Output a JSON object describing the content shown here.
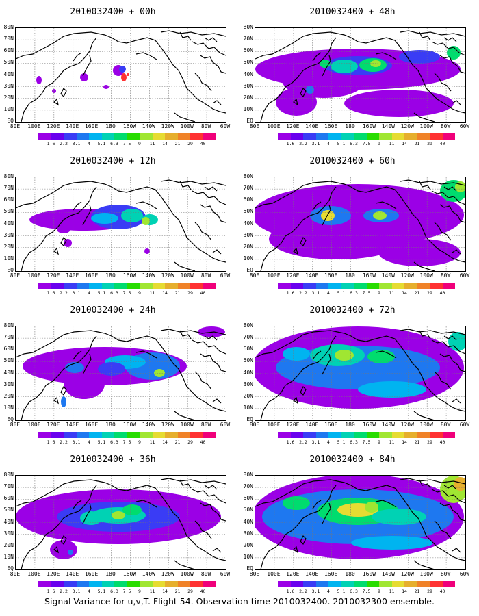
{
  "panels": [
    {
      "title": "2010032400 + 00h"
    },
    {
      "title": "2010032400 + 48h"
    },
    {
      "title": "2010032400 + 12h"
    },
    {
      "title": "2010032400 + 60h"
    },
    {
      "title": "2010032400 + 24h"
    },
    {
      "title": "2010032400 + 72h"
    },
    {
      "title": "2010032400 + 36h"
    },
    {
      "title": "2010032400 + 84h"
    }
  ],
  "lat_labels": [
    "80N",
    "70N",
    "60N",
    "50N",
    "40N",
    "30N",
    "20N",
    "10N",
    "EQ"
  ],
  "lon_labels": [
    "80E",
    "100E",
    "120E",
    "140E",
    "160E",
    "180",
    "160W",
    "140W",
    "120W",
    "100W",
    "80W",
    "60W"
  ],
  "legend": {
    "labels": [
      "1.6",
      "2.2",
      "3.1",
      "4",
      "5.1",
      "6.3",
      "7.5",
      "9",
      "11",
      "14",
      "21",
      "29",
      "40"
    ],
    "colors": [
      "#9b00e6",
      "#6a00ee",
      "#3a3cf5",
      "#1e78f0",
      "#00b4f0",
      "#00d2b4",
      "#00dc6e",
      "#28dc00",
      "#a0e632",
      "#e6dc32",
      "#e6af2d",
      "#f08228",
      "#ff3232",
      "#f0007a"
    ]
  },
  "footer": "Signal Variance for u,v,T. Flight 54. Observation time 2010032400. 2010032300 ensemble."
}
